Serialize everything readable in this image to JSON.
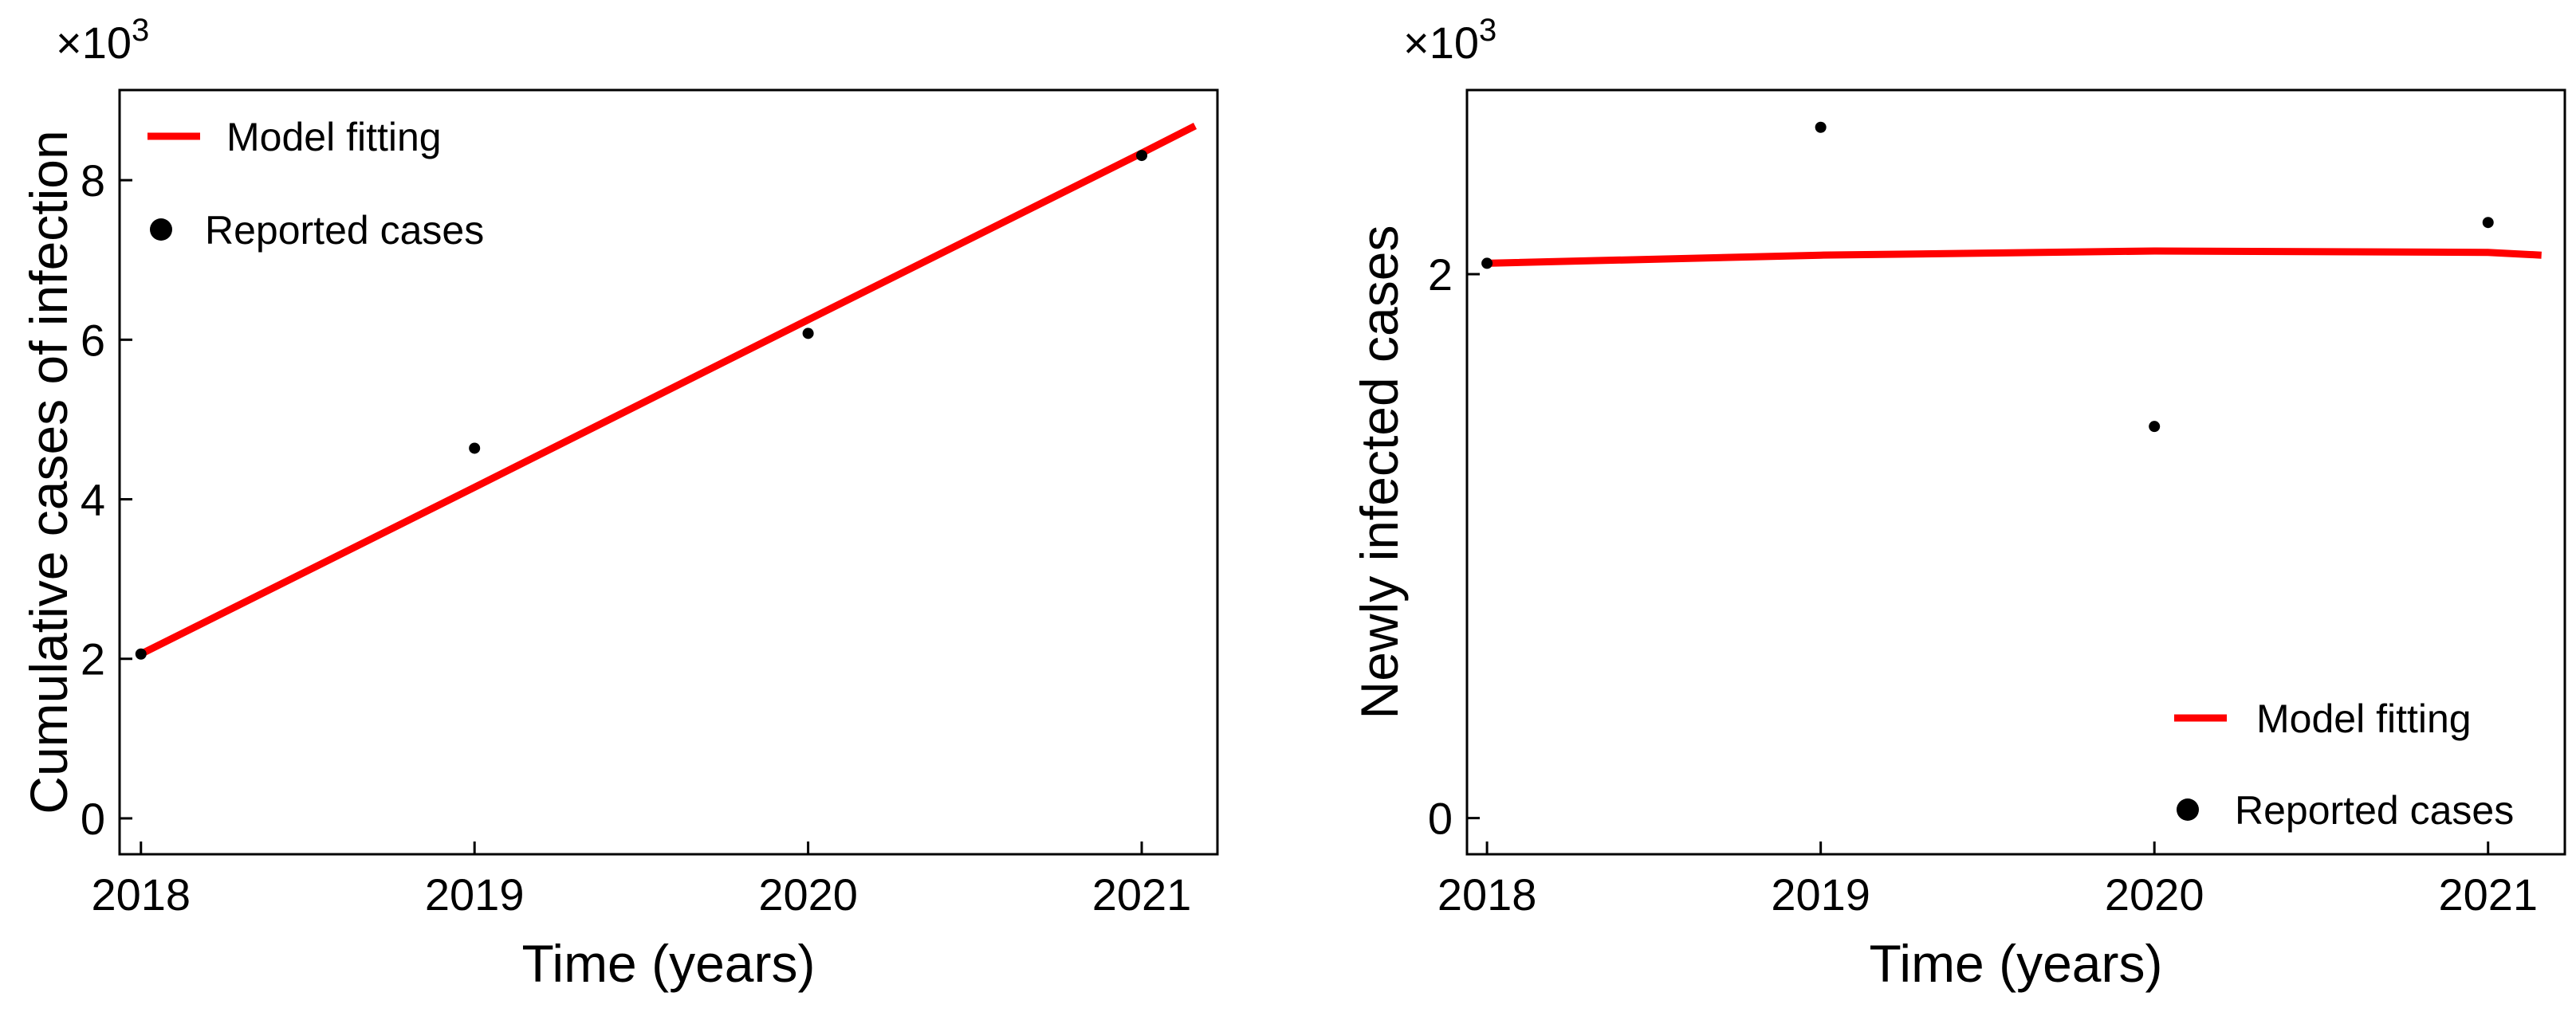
{
  "chart_data": [
    {
      "type": "line",
      "multiplier": {
        "base": "×10",
        "exponent": "3"
      },
      "x_label": "Time (years)",
      "y_label": "Cumulative cases of infection",
      "xlim": [
        2017.936,
        2021.227
      ],
      "ylim": [
        -0.45,
        9.13
      ],
      "xticks": [
        2018,
        2019,
        2020,
        2021
      ],
      "yticks": [
        0,
        2,
        4,
        6,
        8
      ],
      "grid": false,
      "legend": "upper left",
      "series": [
        {
          "name": "Model fitting",
          "type": "line",
          "color": "#ff0000",
          "x": [
            2018,
            2019,
            2020,
            2021,
            2021.16
          ],
          "values": [
            2.06,
            4.15,
            6.25,
            8.34,
            8.68
          ]
        },
        {
          "name": "Reported cases",
          "type": "scatter",
          "color": "#000000",
          "x": [
            2018,
            2019,
            2020,
            2021
          ],
          "values": [
            2.06,
            4.64,
            6.08,
            8.31
          ]
        }
      ]
    },
    {
      "type": "line",
      "multiplier": {
        "base": "×10",
        "exponent": "3"
      },
      "x_label": "Time (years)",
      "y_label": "Newly infected cases",
      "xlim": [
        2017.94,
        2021.23
      ],
      "ylim": [
        -0.133,
        2.677
      ],
      "xticks": [
        2018,
        2019,
        2020,
        2021
      ],
      "yticks": [
        0,
        2
      ],
      "grid": false,
      "legend": "lower right",
      "series": [
        {
          "name": "Model fitting",
          "type": "line",
          "color": "#ff0000",
          "x": [
            2018,
            2019,
            2020,
            2021,
            2021.16
          ],
          "values": [
            2.04,
            2.07,
            2.085,
            2.08,
            2.07
          ]
        },
        {
          "name": "Reported cases",
          "type": "scatter",
          "color": "#000000",
          "x": [
            2018,
            2019,
            2020,
            2021
          ],
          "values": [
            2.04,
            2.54,
            1.44,
            2.19
          ]
        }
      ]
    }
  ]
}
